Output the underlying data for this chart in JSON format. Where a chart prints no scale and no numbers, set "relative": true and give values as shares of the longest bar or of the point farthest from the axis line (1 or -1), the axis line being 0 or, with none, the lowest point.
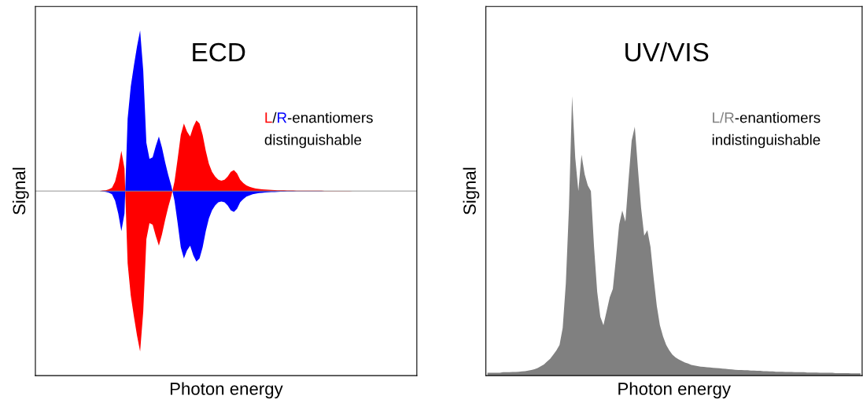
{
  "chart_data": [
    {
      "type": "area",
      "title": "ECD",
      "xlabel": "Photon energy",
      "ylabel": "Signal",
      "relative": true,
      "tick_labels": false,
      "categories": [
        null,
        null,
        null,
        null,
        null,
        null,
        null,
        null,
        null,
        null,
        null,
        null,
        null,
        null,
        null,
        null,
        null,
        null,
        null,
        null,
        null,
        null,
        null,
        null,
        null,
        null,
        null,
        null,
        null,
        null,
        null,
        null,
        null,
        null,
        null,
        null,
        null,
        null,
        null,
        null,
        null,
        null,
        null,
        null,
        null,
        null,
        null,
        null,
        null,
        null,
        null,
        null,
        null,
        null,
        null,
        null,
        null,
        null,
        null,
        null,
        null,
        null,
        null,
        null,
        null,
        null,
        null,
        null,
        null,
        null,
        null,
        null,
        null,
        null,
        null,
        null,
        null,
        null,
        null,
        null,
        null,
        null,
        null,
        null,
        null,
        null,
        null,
        null,
        null,
        null,
        null,
        null,
        null,
        null,
        null,
        null,
        null,
        null,
        null,
        null,
        null,
        null,
        null,
        null,
        null,
        null,
        null,
        null,
        null,
        null,
        null,
        null,
        null,
        null,
        null,
        null,
        null,
        null,
        null,
        null,
        null,
        null
      ],
      "annotations": [
        "/",
        "-enantiomers",
        "distinguishable"
      ],
      "series": [
        {
          "name": "L",
          "color": "#ff0000",
          "values": [
            0,
            0,
            0,
            0,
            0,
            0,
            0,
            0,
            0,
            0,
            0,
            0,
            0,
            0,
            0,
            0,
            0,
            0,
            0,
            0,
            0,
            0.003,
            0.005,
            0.01,
            0.02,
            0.06,
            0.14,
            0.25,
            0.14,
            -0.45,
            -0.65,
            -0.78,
            -0.9,
            -1.0,
            -0.75,
            -0.3,
            -0.2,
            -0.21,
            -0.28,
            -0.34,
            -0.27,
            -0.18,
            -0.1,
            -0.03,
            0.06,
            0.2,
            0.35,
            0.42,
            0.37,
            0.34,
            0.4,
            0.44,
            0.42,
            0.35,
            0.25,
            0.17,
            0.12,
            0.09,
            0.07,
            0.065,
            0.07,
            0.09,
            0.12,
            0.13,
            0.11,
            0.07,
            0.05,
            0.035,
            0.027,
            0.02,
            0.016,
            0.013,
            0.011,
            0.009,
            0.008,
            0.007,
            0.006,
            0.005,
            0.004,
            0.004,
            0.003,
            0.003,
            0.003,
            0.002,
            0.002,
            0.002,
            0.002,
            0.002,
            0.002,
            0.002,
            0.002,
            0.002,
            0.001,
            0.001,
            0.001,
            0.001,
            0.001,
            0.001,
            0.001,
            0.001,
            0.001,
            0,
            0,
            0,
            0,
            0,
            0,
            0,
            0,
            0,
            0,
            0,
            0,
            0,
            0,
            0,
            0,
            0,
            0,
            0,
            0,
            0
          ]
        },
        {
          "name": "R",
          "color": "#0000ff",
          "values": [
            0,
            0,
            0,
            0,
            0,
            0,
            0,
            0,
            0,
            0,
            0,
            0,
            0,
            0,
            0,
            0,
            0,
            0,
            0,
            0,
            0,
            -0.003,
            -0.005,
            -0.01,
            -0.02,
            -0.06,
            -0.14,
            -0.25,
            -0.14,
            0.45,
            0.65,
            0.78,
            0.9,
            1.0,
            0.75,
            0.3,
            0.2,
            0.21,
            0.28,
            0.34,
            0.27,
            0.18,
            0.1,
            0.03,
            -0.06,
            -0.2,
            -0.35,
            -0.42,
            -0.37,
            -0.34,
            -0.4,
            -0.44,
            -0.42,
            -0.35,
            -0.25,
            -0.17,
            -0.12,
            -0.09,
            -0.07,
            -0.065,
            -0.07,
            -0.09,
            -0.12,
            -0.13,
            -0.11,
            -0.07,
            -0.05,
            -0.035,
            -0.027,
            -0.02,
            -0.016,
            -0.013,
            -0.011,
            -0.009,
            -0.008,
            -0.007,
            -0.006,
            -0.005,
            -0.004,
            -0.004,
            -0.003,
            -0.003,
            -0.003,
            -0.002,
            -0.002,
            -0.002,
            -0.002,
            -0.002,
            -0.002,
            -0.002,
            -0.002,
            -0.002,
            -0.001,
            -0.001,
            -0.001,
            -0.001,
            -0.001,
            -0.001,
            -0.001,
            -0.001,
            -0.001,
            0,
            0,
            0,
            0,
            0,
            0,
            0,
            0,
            0,
            0,
            0,
            0,
            0,
            0,
            0,
            0,
            0,
            0,
            0,
            0,
            0
          ]
        }
      ]
    },
    {
      "type": "area",
      "title": "UV/VIS",
      "xlabel": "Photon energy",
      "ylabel": "Signal",
      "relative": true,
      "tick_labels": false,
      "categories": [
        null,
        null,
        null,
        null,
        null,
        null,
        null,
        null,
        null,
        null,
        null,
        null,
        null,
        null,
        null,
        null,
        null,
        null,
        null,
        null,
        null,
        null,
        null,
        null,
        null,
        null,
        null,
        null,
        null,
        null,
        null,
        null,
        null,
        null,
        null,
        null,
        null,
        null,
        null,
        null,
        null,
        null,
        null,
        null,
        null,
        null,
        null,
        null,
        null,
        null,
        null,
        null,
        null,
        null,
        null,
        null,
        null,
        null,
        null,
        null,
        null,
        null,
        null,
        null,
        null,
        null,
        null,
        null,
        null,
        null,
        null,
        null,
        null,
        null,
        null,
        null,
        null,
        null,
        null,
        null,
        null,
        null,
        null,
        null,
        null,
        null,
        null,
        null,
        null,
        null,
        null,
        null,
        null,
        null,
        null,
        null,
        null,
        null,
        null,
        null,
        null,
        null,
        null,
        null,
        null,
        null,
        null,
        null,
        null,
        null,
        null,
        null,
        null,
        null,
        null,
        null,
        null,
        null,
        null,
        null
      ],
      "annotations": [
        "-enantiomers",
        "indistinguishable"
      ],
      "series": [
        {
          "name": "L/R",
          "color": "#808080",
          "values": [
            0.01,
            0.01,
            0.01,
            0.01,
            0.01,
            0.012,
            0.012,
            0.012,
            0.013,
            0.013,
            0.014,
            0.015,
            0.016,
            0.018,
            0.02,
            0.023,
            0.027,
            0.033,
            0.04,
            0.05,
            0.06,
            0.075,
            0.09,
            0.11,
            0.17,
            0.33,
            0.6,
            1.0,
            0.78,
            0.66,
            0.79,
            0.72,
            0.68,
            0.66,
            0.46,
            0.3,
            0.21,
            0.18,
            0.23,
            0.28,
            0.31,
            0.42,
            0.54,
            0.59,
            0.55,
            0.7,
            0.84,
            0.89,
            0.74,
            0.6,
            0.5,
            0.52,
            0.46,
            0.35,
            0.25,
            0.18,
            0.14,
            0.11,
            0.09,
            0.075,
            0.065,
            0.058,
            0.052,
            0.047,
            0.043,
            0.038,
            0.036,
            0.034,
            0.032,
            0.031,
            0.03,
            0.029,
            0.028,
            0.027,
            0.026,
            0.025,
            0.024,
            0.023,
            0.022,
            0.021,
            0.02,
            0.02,
            0.019,
            0.019,
            0.018,
            0.018,
            0.017,
            0.017,
            0.016,
            0.016,
            0.015,
            0.015,
            0.014,
            0.014,
            0.014,
            0.013,
            0.013,
            0.013,
            0.012,
            0.012,
            0.012,
            0.012,
            0.011,
            0.011,
            0.011,
            0.011,
            0.01,
            0.01,
            0.01,
            0.01,
            0.01,
            0.009,
            0.009,
            0.009,
            0.009,
            0.009,
            0.008,
            0.008,
            0.008,
            0.008
          ]
        }
      ]
    }
  ]
}
